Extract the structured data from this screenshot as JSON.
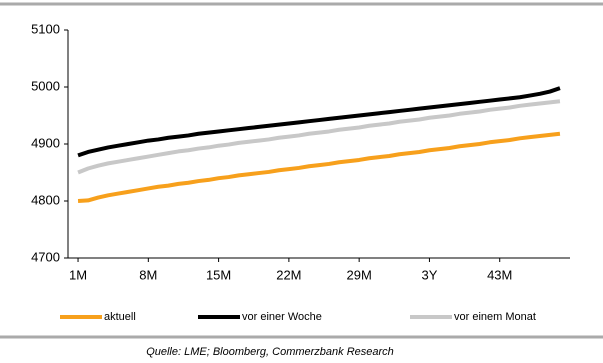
{
  "chart_data": {
    "type": "line",
    "source": "Quelle: LME; Bloomberg, Commerzbank Research",
    "x": [
      1,
      2,
      3,
      4,
      5,
      6,
      7,
      8,
      9,
      10,
      11,
      12,
      13,
      14,
      15,
      16,
      17,
      18,
      19,
      20,
      21,
      22,
      23,
      24,
      25,
      26,
      27,
      28,
      29,
      30,
      31,
      32,
      33,
      34,
      35,
      36,
      37,
      38,
      39,
      40,
      41,
      42,
      43,
      44,
      45,
      46,
      47,
      48,
      49
    ],
    "xlim": [
      0,
      50
    ],
    "xticks": [
      {
        "value": 1,
        "label": "1M"
      },
      {
        "value": 8,
        "label": "8M"
      },
      {
        "value": 15,
        "label": "15M"
      },
      {
        "value": 22,
        "label": "22M"
      },
      {
        "value": 29,
        "label": "29M"
      },
      {
        "value": 36,
        "label": "3Y"
      },
      {
        "value": 43,
        "label": "43M"
      }
    ],
    "ylim": [
      4700,
      5100
    ],
    "yticks": [
      4700,
      4800,
      4900,
      5000,
      5100
    ],
    "legend": "bottom",
    "series": [
      {
        "name": "aktuell",
        "color": "#f7a01c",
        "values": [
          4800,
          4801,
          4806,
          4810,
          4813,
          4816,
          4819,
          4822,
          4825,
          4827,
          4830,
          4832,
          4835,
          4837,
          4840,
          4842,
          4845,
          4847,
          4849,
          4851,
          4854,
          4856,
          4858,
          4861,
          4863,
          4865,
          4868,
          4870,
          4872,
          4875,
          4877,
          4879,
          4882,
          4884,
          4886,
          4889,
          4891,
          4893,
          4896,
          4898,
          4900,
          4903,
          4905,
          4907,
          4910,
          4912,
          4914,
          4916,
          4918
        ]
      },
      {
        "name": "vor einer Woche",
        "color": "#000000",
        "values": [
          4880,
          4886,
          4890,
          4894,
          4897,
          4900,
          4903,
          4906,
          4908,
          4911,
          4913,
          4915,
          4918,
          4920,
          4922,
          4924,
          4926,
          4928,
          4930,
          4932,
          4934,
          4936,
          4938,
          4940,
          4942,
          4944,
          4946,
          4948,
          4950,
          4952,
          4954,
          4956,
          4958,
          4960,
          4962,
          4964,
          4966,
          4968,
          4970,
          4972,
          4974,
          4976,
          4978,
          4980,
          4982,
          4985,
          4988,
          4992,
          4998
        ]
      },
      {
        "name": "vor einem Monat",
        "color": "#c8c8c8",
        "values": [
          4850,
          4857,
          4862,
          4866,
          4869,
          4872,
          4875,
          4878,
          4881,
          4884,
          4887,
          4889,
          4892,
          4894,
          4897,
          4899,
          4902,
          4904,
          4906,
          4908,
          4911,
          4913,
          4915,
          4918,
          4920,
          4922,
          4925,
          4927,
          4929,
          4932,
          4934,
          4936,
          4939,
          4941,
          4943,
          4946,
          4948,
          4950,
          4953,
          4955,
          4957,
          4960,
          4962,
          4964,
          4967,
          4969,
          4971,
          4973,
          4975
        ]
      }
    ]
  }
}
